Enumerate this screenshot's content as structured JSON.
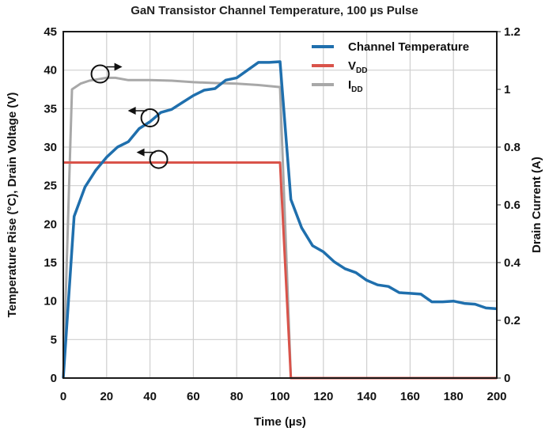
{
  "chart_data": {
    "type": "line",
    "title": "GaN Transistor Channel Temperature, 100 µs Pulse",
    "xlabel": "Time (µs)",
    "ylabel_left": "Temperature Rise (°C), Drain Voltage (V)",
    "ylabel_right": "Drain Current (A)",
    "xlim": [
      0,
      200
    ],
    "ylim_left": [
      0,
      45
    ],
    "ylim_right": [
      0,
      1.2
    ],
    "x_ticks": [
      "0",
      "20",
      "40",
      "60",
      "80",
      "100",
      "120",
      "140",
      "160",
      "180",
      "200"
    ],
    "y_ticks_left": [
      "0",
      "5",
      "10",
      "15",
      "20",
      "25",
      "30",
      "35",
      "40",
      "45"
    ],
    "y_ticks_right": [
      "0",
      "0.2",
      "0.4",
      "0.6",
      "0.8",
      "1",
      "1.2"
    ],
    "grid": true,
    "legend_position": "top-right",
    "legend": [
      {
        "label": "Channel Temperature",
        "sub": "",
        "color": "#1f6fad"
      },
      {
        "label": "V",
        "sub": "DD",
        "color": "#d9534a"
      },
      {
        "label": "I",
        "sub": "DD",
        "color": "#a8a8a8"
      }
    ],
    "series": [
      {
        "name": "Channel Temperature",
        "axis": "left",
        "color": "#1f6fad",
        "x": [
          0,
          5,
          10,
          15,
          20,
          25,
          30,
          35,
          40,
          45,
          50,
          55,
          60,
          65,
          70,
          75,
          80,
          85,
          90,
          95,
          100,
          105,
          110,
          115,
          120,
          125,
          130,
          135,
          140,
          145,
          150,
          155,
          160,
          165,
          170,
          175,
          180,
          185,
          190,
          195,
          200
        ],
        "y": [
          0,
          21,
          24.8,
          27,
          28.7,
          30,
          30.7,
          32.4,
          33.3,
          34.5,
          34.9,
          35.8,
          36.7,
          37.4,
          37.6,
          38.7,
          39,
          40,
          41,
          41,
          41.1,
          23.2,
          19.5,
          17.2,
          16.4,
          15.1,
          14.2,
          13.7,
          12.7,
          12.1,
          11.9,
          11.1,
          11,
          10.9,
          9.9,
          9.9,
          10,
          9.7,
          9.6,
          9.1,
          9
        ]
      },
      {
        "name": "VDD",
        "axis": "left",
        "color": "#d9534a",
        "x": [
          0,
          0.2,
          100,
          105,
          200
        ],
        "y": [
          28,
          28,
          28,
          0,
          0
        ]
      },
      {
        "name": "IDD",
        "axis": "right",
        "color": "#a8a8a8",
        "x": [
          0,
          4,
          8,
          12,
          16,
          20,
          24,
          30,
          40,
          50,
          60,
          70,
          80,
          90,
          100,
          105,
          200
        ],
        "y": [
          0,
          1.0,
          1.02,
          1.03,
          1.035,
          1.04,
          1.04,
          1.032,
          1.032,
          1.03,
          1.025,
          1.022,
          1.02,
          1.015,
          1.008,
          0,
          0
        ]
      }
    ],
    "annotations": [
      {
        "type": "axis-pointer",
        "series": "IDD",
        "direction": "right",
        "at_x": 17,
        "at_y_left": 39.5
      },
      {
        "type": "axis-pointer",
        "series": "Channel Temperature",
        "direction": "left",
        "at_x": 40,
        "at_y_left": 33.8
      },
      {
        "type": "axis-pointer",
        "series": "VDD",
        "direction": "left",
        "at_x": 44,
        "at_y_left": 28.4
      }
    ]
  }
}
